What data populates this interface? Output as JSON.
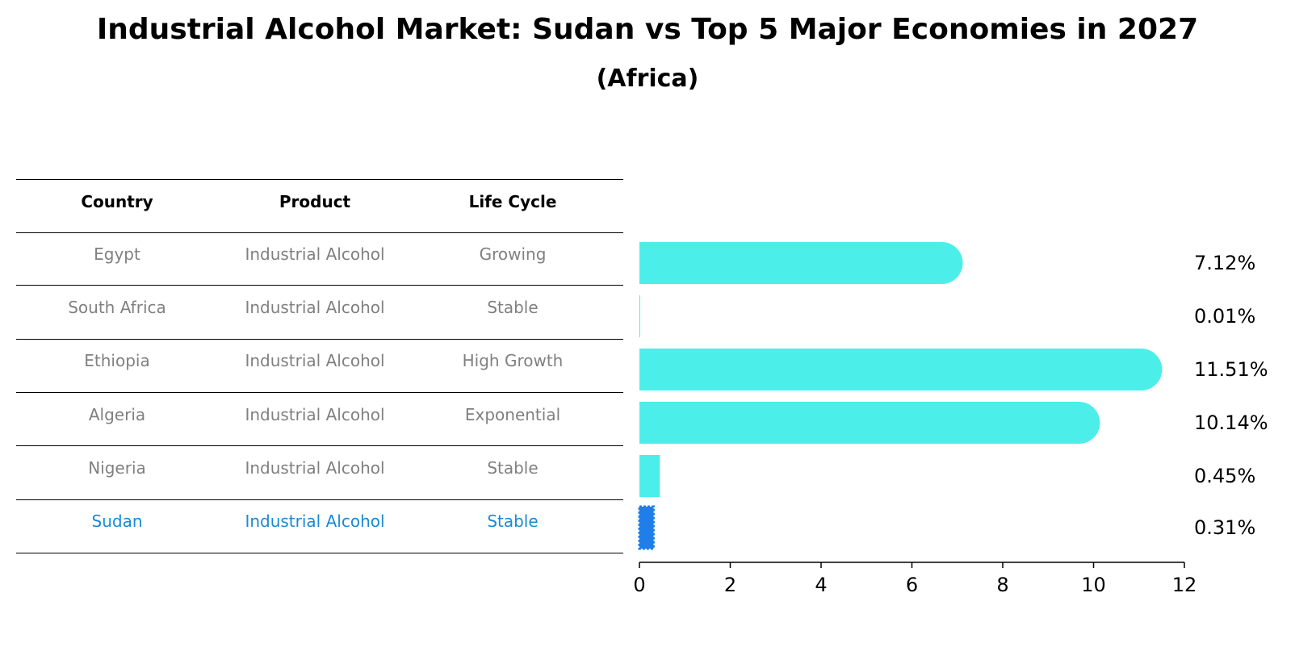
{
  "title": "Industrial Alcohol Market: Sudan vs Top 5 Major Economies in 2027",
  "subtitle": "(Africa)",
  "table": {
    "headers": [
      "Country",
      "Product",
      "Life Cycle"
    ],
    "rows": [
      {
        "country": "Egypt",
        "product": "Industrial Alcohol",
        "life_cycle": "Growing",
        "highlight": false
      },
      {
        "country": "South Africa",
        "product": "Industrial Alcohol",
        "life_cycle": "Stable",
        "highlight": false
      },
      {
        "country": "Ethiopia",
        "product": "Industrial Alcohol",
        "life_cycle": "High Growth",
        "highlight": false
      },
      {
        "country": "Algeria",
        "product": "Industrial Alcohol",
        "life_cycle": "Exponential",
        "highlight": false
      },
      {
        "country": "Nigeria",
        "product": "Industrial Alcohol",
        "life_cycle": "Stable",
        "highlight": false
      },
      {
        "country": "Sudan",
        "product": "Industrial Alcohol",
        "life_cycle": "Stable",
        "highlight": true
      }
    ]
  },
  "chart_data": {
    "type": "bar",
    "orientation": "horizontal",
    "categories": [
      "Egypt",
      "South Africa",
      "Ethiopia",
      "Algeria",
      "Nigeria",
      "Sudan"
    ],
    "values": [
      7.12,
      0.01,
      11.51,
      10.14,
      0.45,
      0.31
    ],
    "value_labels": [
      "7.12%",
      "0.01%",
      "11.51%",
      "10.14%",
      "0.45%",
      "0.31%"
    ],
    "xlim": [
      0,
      12
    ],
    "xticks": [
      0,
      2,
      4,
      6,
      8,
      10,
      12
    ],
    "grid": false,
    "legend": "none",
    "colors": {
      "bar": "#4ceeea",
      "highlight_bar": "#1f7ee8"
    },
    "highlight_category": "Sudan"
  }
}
